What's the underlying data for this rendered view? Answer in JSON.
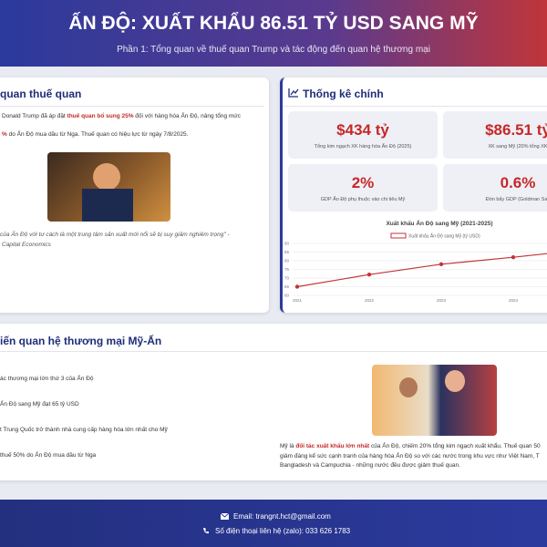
{
  "header": {
    "title": "ẤN ĐỘ: XUẤT KHẨU 86.51 TỶ USD SANG MỸ",
    "subtitle": "Phần 1: Tổng quan về thuế quan Trump và tác động đến quan hệ thương mại"
  },
  "overview": {
    "title": "quan thuế quan",
    "lines": [
      [
        {
          "text": "Donald Trump đã áp đặt "
        },
        {
          "text": "thuế quan bổ sung 25%",
          "strong": true
        },
        {
          "text": " đối với hàng hóa Ấn Độ, nâng tổng mức"
        }
      ],
      [
        {
          "text": "%",
          "strong": true
        },
        {
          "text": " do Ấn Độ mua dầu từ Nga. Thuế quan có hiệu lực từ ngày 7/8/2025."
        }
      ]
    ],
    "quote": [
      "của Ấn Độ với tư cách là một trung tâm sản xuất mới nổi sẽ bị suy giảm nghiêm trọng\" -",
      "Capital Economics"
    ]
  },
  "stats": {
    "title": "Thống kê chính",
    "items": [
      {
        "value": "$434 tỷ",
        "label": "Tổng kim ngạch XK hàng hóa Ấn Độ (2025)"
      },
      {
        "value": "$86.51 tỷ",
        "label": "XK sang Mỹ (20% tổng XK"
      },
      {
        "value": "2%",
        "label": "GDP Ấn Độ phụ thuộc vào chi tiêu Mỹ"
      },
      {
        "value": "0.6%",
        "label": "Đòn bẩy GDP (Goldman Sac"
      }
    ],
    "chart": {
      "type": "line",
      "title": "Xuất khẩu Ấn Độ sang Mỹ (2021-2025)",
      "categories": [
        "2021",
        "2022",
        "2023",
        "2024",
        "2025"
      ],
      "series": [
        {
          "name": "Xuất khẩu Ấn Độ sang Mỹ (tỷ USD)",
          "color": "#c0353a",
          "values": [
            65,
            72,
            78,
            82,
            86.51
          ]
        }
      ],
      "ylim": [
        60,
        90
      ],
      "yticks": [
        60,
        65,
        70,
        75,
        80,
        85,
        90
      ],
      "grid": true
    }
  },
  "relations": {
    "title": "iến quan hệ thương mại Mỹ-Ấn",
    "items": [
      "ác thương mại lớn thứ 3 của Ấn Độ",
      "Ấn Độ sang Mỹ đạt 65 tỷ USD",
      "t Trung Quốc trở thành nhà cung cấp hàng hóa lớn nhất cho Mỹ",
      "thuế 50% do Ấn Độ mua dầu từ Nga"
    ],
    "lines": [
      [
        {
          "text": "Mỹ là "
        },
        {
          "text": "đối tác xuất khẩu lớn nhất",
          "strong": true
        },
        {
          "text": " của Ấn Độ, chiếm 20% tổng kim ngạch xuất khẩu. Thuế quan 50"
        }
      ],
      [
        {
          "text": "giảm đáng kể sức cạnh tranh của hàng hóa Ấn Độ so với các nước trong khu vực như Việt Nam, T"
        }
      ],
      [
        {
          "text": "Bangladesh và Campuchia - những nước đều được giảm thuế quan."
        }
      ]
    ]
  },
  "footer": {
    "email": "Email: trangnt.hct@gmail.com",
    "phone": "Số điện thoại liên hệ (zalo): 033 626 1783"
  }
}
